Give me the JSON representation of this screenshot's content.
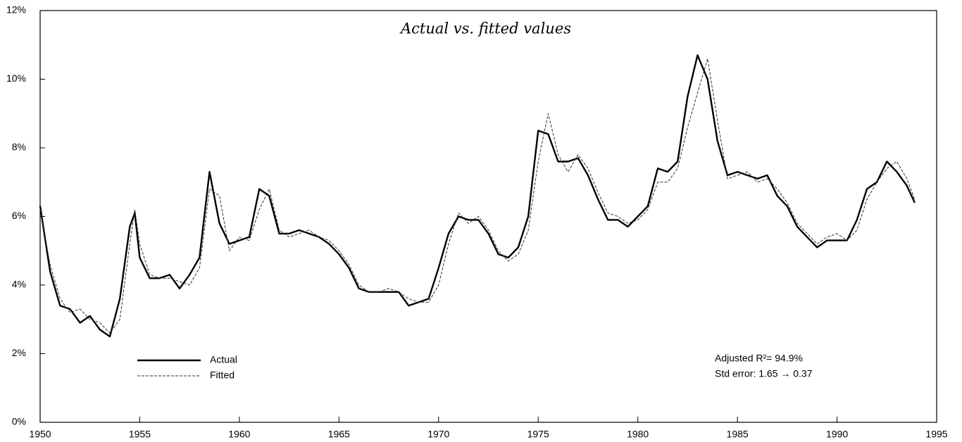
{
  "chart_data": {
    "type": "line",
    "title": "Actual vs. fitted values",
    "annotations": [
      "Adjusted R²= 94.9%",
      "Std error: 1.65 → 0.37"
    ],
    "x": [
      1950,
      1950.5,
      1951,
      1951.5,
      1952,
      1952.5,
      1953,
      1953.5,
      1954,
      1954.5,
      1954.75,
      1955,
      1955.5,
      1956,
      1956.5,
      1957,
      1957.5,
      1958,
      1958.5,
      1959,
      1959.5,
      1960,
      1960.5,
      1961,
      1961.5,
      1962,
      1962.5,
      1963,
      1963.5,
      1964,
      1964.5,
      1965,
      1965.5,
      1966,
      1966.5,
      1967,
      1967.5,
      1968,
      1968.5,
      1969,
      1969.5,
      1970,
      1970.5,
      1971,
      1971.5,
      1972,
      1972.5,
      1973,
      1973.5,
      1974,
      1974.5,
      1975,
      1975.5,
      1976,
      1976.5,
      1977,
      1977.5,
      1978,
      1978.5,
      1979,
      1979.5,
      1980,
      1980.5,
      1981,
      1981.5,
      1982,
      1982.5,
      1983,
      1983.5,
      1984,
      1984.5,
      1985,
      1985.5,
      1986,
      1986.5,
      1987,
      1987.5,
      1988,
      1988.5,
      1989,
      1989.5,
      1990,
      1990.5,
      1991,
      1991.5,
      1992,
      1992.5,
      1993,
      1993.5,
      1993.9
    ],
    "series": [
      {
        "name": "Actual",
        "color": "#000000",
        "values": [
          6.3,
          4.4,
          3.4,
          3.3,
          2.9,
          3.1,
          2.7,
          2.5,
          3.6,
          5.7,
          6.1,
          4.8,
          4.2,
          4.2,
          4.3,
          3.9,
          4.3,
          4.8,
          7.3,
          5.8,
          5.2,
          5.3,
          5.4,
          6.8,
          6.6,
          5.5,
          5.5,
          5.6,
          5.5,
          5.4,
          5.2,
          4.9,
          4.5,
          3.9,
          3.8,
          3.8,
          3.8,
          3.8,
          3.4,
          3.5,
          3.6,
          4.5,
          5.5,
          6.0,
          5.9,
          5.9,
          5.5,
          4.9,
          4.8,
          5.1,
          6.0,
          8.5,
          8.4,
          7.6,
          7.6,
          7.7,
          7.2,
          6.5,
          5.9,
          5.9,
          5.7,
          6.0,
          6.3,
          7.4,
          7.3,
          7.6,
          9.5,
          10.7,
          10.0,
          8.2,
          7.2,
          7.3,
          7.2,
          7.1,
          7.2,
          6.6,
          6.3,
          5.7,
          5.4,
          5.1,
          5.3,
          5.3,
          5.3,
          5.9,
          6.8,
          7.0,
          7.6,
          7.3,
          6.9,
          6.4
        ]
      },
      {
        "name": "Fitted",
        "color": "#333333",
        "values": [
          6.2,
          4.6,
          3.6,
          3.2,
          3.3,
          3.0,
          2.9,
          2.6,
          3.0,
          5.2,
          6.2,
          5.2,
          4.3,
          4.2,
          4.2,
          4.1,
          4.0,
          4.5,
          6.8,
          6.6,
          5.0,
          5.4,
          5.3,
          6.2,
          6.8,
          5.6,
          5.4,
          5.5,
          5.6,
          5.4,
          5.3,
          5.0,
          4.6,
          4.0,
          3.8,
          3.8,
          3.9,
          3.8,
          3.6,
          3.5,
          3.5,
          4.0,
          5.2,
          6.1,
          5.8,
          6.0,
          5.6,
          5.0,
          4.7,
          4.9,
          5.6,
          7.6,
          9.0,
          7.8,
          7.3,
          7.8,
          7.4,
          6.7,
          6.1,
          6.0,
          5.8,
          5.9,
          6.2,
          7.0,
          7.0,
          7.4,
          8.6,
          9.6,
          10.6,
          8.8,
          7.1,
          7.2,
          7.3,
          7.0,
          7.1,
          6.8,
          6.4,
          5.8,
          5.5,
          5.2,
          5.4,
          5.5,
          5.3,
          5.6,
          6.5,
          7.0,
          7.4,
          7.6,
          7.1,
          6.5
        ]
      }
    ],
    "xlim": [
      1950,
      1995
    ],
    "xticks": [
      1950,
      1955,
      1960,
      1965,
      1970,
      1975,
      1980,
      1985,
      1990,
      1995
    ],
    "ylim": [
      0,
      12
    ],
    "yticks": [
      {
        "value": 0,
        "label": "0%"
      },
      {
        "value": 2,
        "label": "2%"
      },
      {
        "value": 4,
        "label": "4%"
      },
      {
        "value": 6,
        "label": "6%"
      },
      {
        "value": 8,
        "label": "8%"
      },
      {
        "value": 10,
        "label": "10%"
      },
      {
        "value": 12,
        "label": "12%"
      }
    ],
    "grid": false,
    "legend": "lower left"
  }
}
